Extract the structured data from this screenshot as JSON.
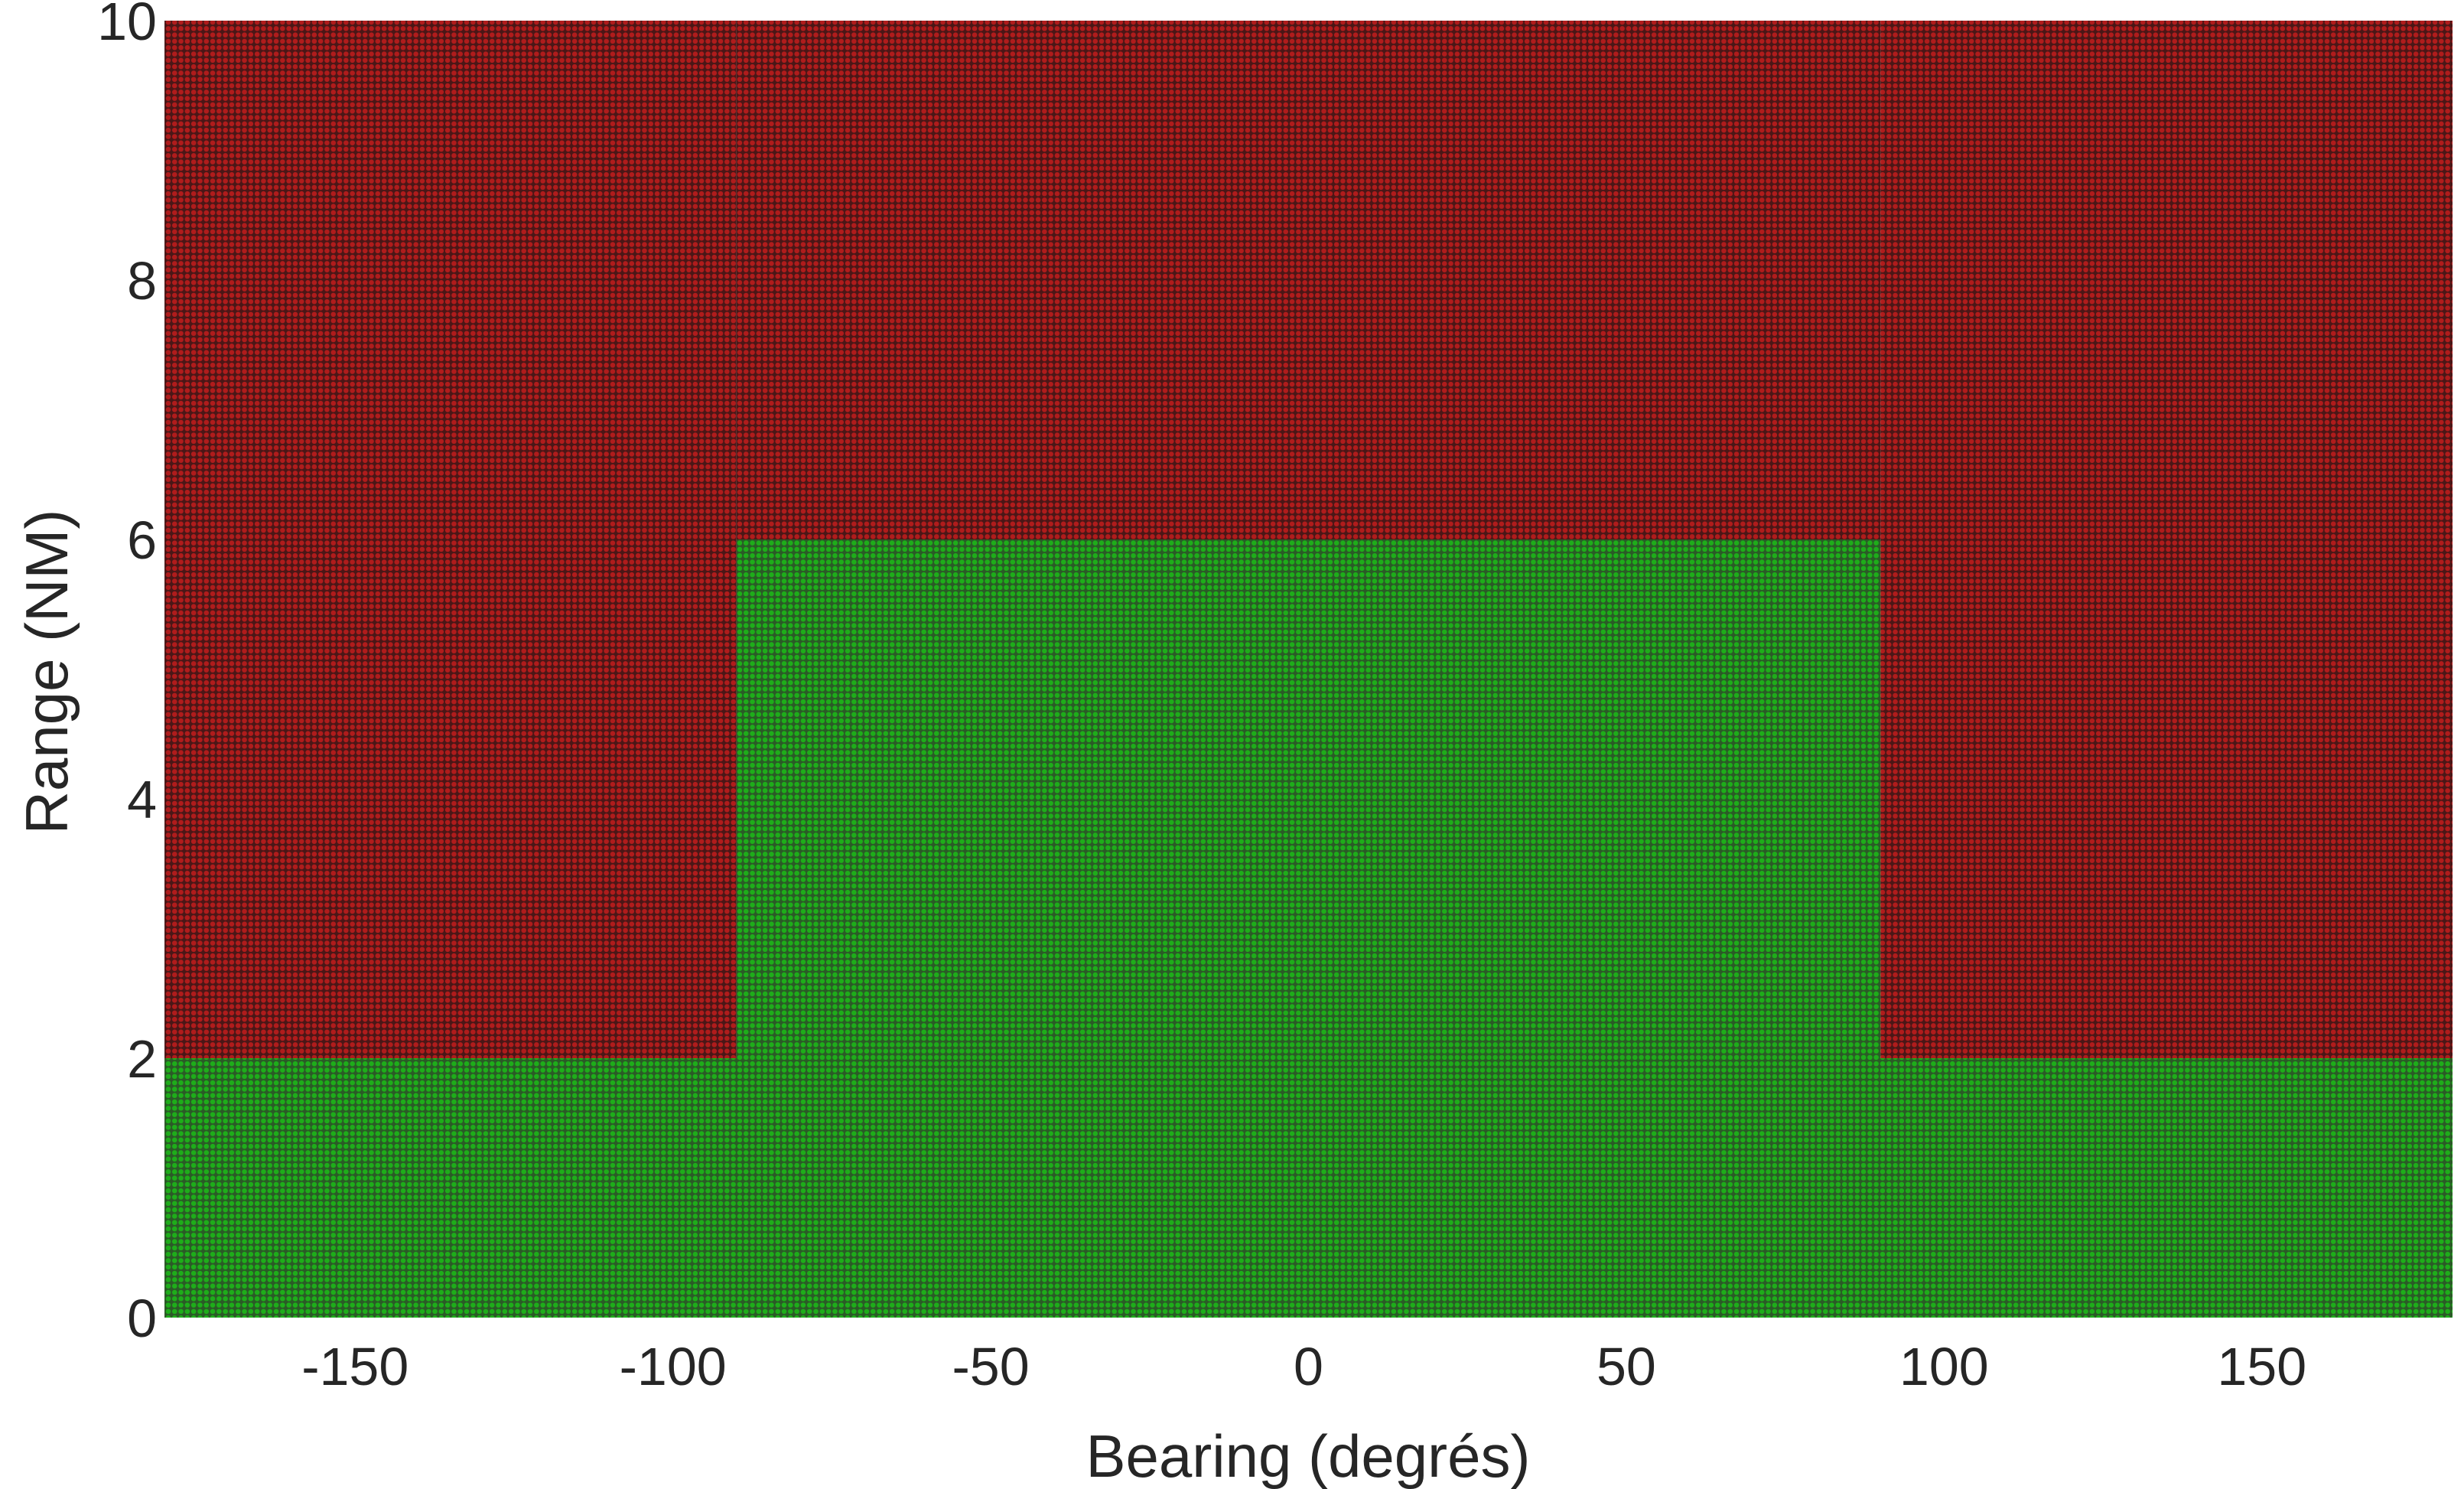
{
  "chart_data": {
    "type": "scatter",
    "title": "",
    "xlabel": "Bearing (degrés)",
    "ylabel": "Range (NM)",
    "xlim": [
      -180,
      180
    ],
    "ylim": [
      0,
      10
    ],
    "grid": false,
    "legend": "none",
    "x_ticks": [
      "-150",
      "-100",
      "-50",
      "0",
      "50",
      "100",
      "150"
    ],
    "x_tick_values": [
      -150,
      -100,
      -50,
      0,
      50,
      100,
      150
    ],
    "y_ticks": [
      "0",
      "2",
      "4",
      "6",
      "8",
      "10"
    ],
    "y_tick_values": [
      0,
      2,
      4,
      6,
      8,
      10
    ],
    "marker_style": "filled circles on a dense regular grid of bearing × range samples",
    "grid_sampling": {
      "bearing_step": 2,
      "range_step": 0.1
    },
    "series": [
      {
        "color": "#1ead1a",
        "regions": [
          {
            "bearing": [
              -180,
              180
            ],
            "range": [
              0,
              2
            ]
          },
          {
            "bearing": [
              -90,
              90
            ],
            "range": [
              2,
              6
            ]
          }
        ]
      },
      {
        "color": "#b01c1c",
        "regions": [
          {
            "bearing": [
              -180,
              -90
            ],
            "range": [
              2,
              10
            ]
          },
          {
            "bearing": [
              90,
              180
            ],
            "range": [
              2,
              10
            ]
          },
          {
            "bearing": [
              -90,
              90
            ],
            "range": [
              6,
              10
            ]
          }
        ]
      }
    ],
    "marker_edge_color": "#2a2a2a"
  }
}
